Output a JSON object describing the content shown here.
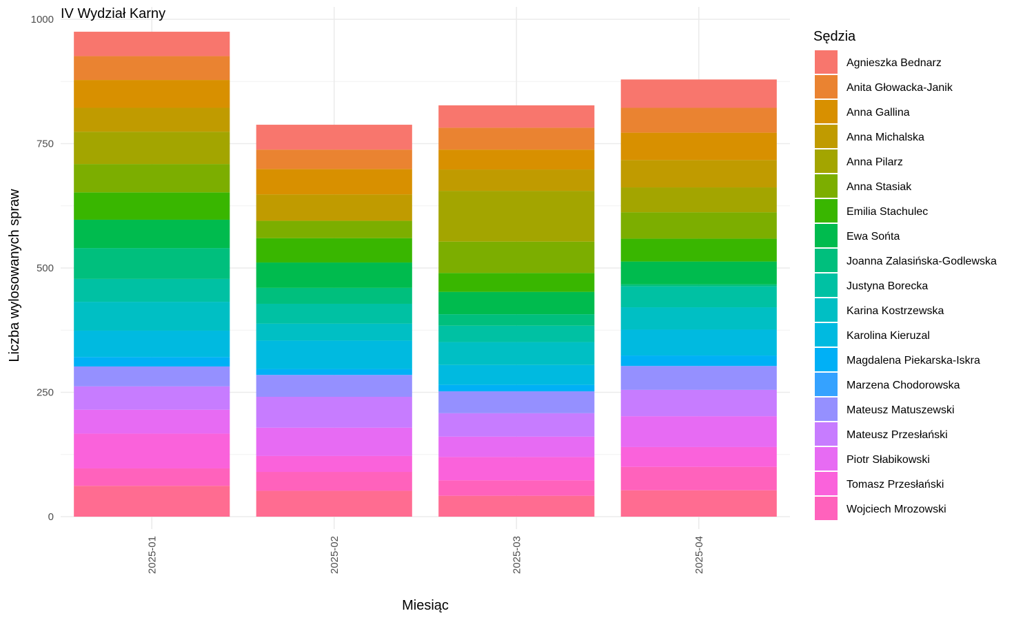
{
  "chart_data": {
    "type": "bar",
    "stacked": true,
    "title": "IV Wydział Karny",
    "xlabel": "Miesiąc",
    "ylabel": "Liczba wylosowanych spraw",
    "ylim": [
      0,
      1000
    ],
    "yticks": [
      0,
      250,
      500,
      750,
      1000
    ],
    "grid": true,
    "legend_position": "right",
    "legend_title": "Sędzia",
    "categories": [
      "2025-01",
      "2025-02",
      "2025-03",
      "2025-04"
    ],
    "series": [
      {
        "name": "Agnieszka Bednarz",
        "color": "#F8766D",
        "values": [
          49,
          50,
          45,
          57
        ]
      },
      {
        "name": "Anita Głowacka-Janik",
        "color": "#EA8331",
        "values": [
          48,
          39,
          44,
          50
        ]
      },
      {
        "name": "Anna Gallina",
        "color": "#D89000",
        "values": [
          56,
          51,
          40,
          55
        ]
      },
      {
        "name": "Anna Michalska",
        "color": "#C09B00",
        "values": [
          48,
          53,
          43,
          55
        ]
      },
      {
        "name": "Anna Pilarz",
        "color": "#A3A500",
        "values": [
          65,
          0,
          102,
          50
        ]
      },
      {
        "name": "Anna Stasiak",
        "color": "#7CAE00",
        "values": [
          57,
          35,
          63,
          53
        ]
      },
      {
        "name": "Emilia Stachulec",
        "color": "#39B600",
        "values": [
          55,
          49,
          38,
          46
        ]
      },
      {
        "name": "Ewa Sońta",
        "color": "#00BB4E",
        "values": [
          57,
          51,
          45,
          46
        ]
      },
      {
        "name": "Joanna Zalasińska-Godlewska",
        "color": "#00BF7D",
        "values": [
          62,
          32,
          23,
          4
        ]
      },
      {
        "name": "Justyna Borecka",
        "color": "#00C1A3",
        "values": [
          46,
          40,
          33,
          42
        ]
      },
      {
        "name": "Karina Kostrzewska",
        "color": "#00BFC4",
        "values": [
          58,
          34,
          46,
          45
        ]
      },
      {
        "name": "Karolina Kieruzal",
        "color": "#00BAE0",
        "values": [
          53,
          57,
          40,
          52
        ]
      },
      {
        "name": "Magdalena Piekarska-Iskra",
        "color": "#00B0F6",
        "values": [
          19,
          12,
          13,
          21
        ]
      },
      {
        "name": "Marzena Chodorowska",
        "color": "#35A2FF",
        "values": [
          0,
          0,
          0,
          0
        ]
      },
      {
        "name": "Mateusz Matuszewski",
        "color": "#9590FF",
        "values": [
          40,
          44,
          44,
          48
        ]
      },
      {
        "name": "Mateusz Przesłański",
        "color": "#C77CFF",
        "values": [
          47,
          62,
          47,
          53
        ]
      },
      {
        "name": "Piotr Słabikowski",
        "color": "#E76BF3",
        "values": [
          48,
          57,
          41,
          62
        ]
      },
      {
        "name": "Tomasz Przesłański",
        "color": "#FA62DB",
        "values": [
          70,
          32,
          47,
          40
        ]
      },
      {
        "name": "Wojciech Mrozowski",
        "color": "#FF62BC",
        "values": [
          35,
          38,
          31,
          47
        ]
      },
      {
        "name": "",
        "color": "#FF6C91",
        "values": [
          62,
          52,
          42,
          53
        ]
      }
    ]
  }
}
